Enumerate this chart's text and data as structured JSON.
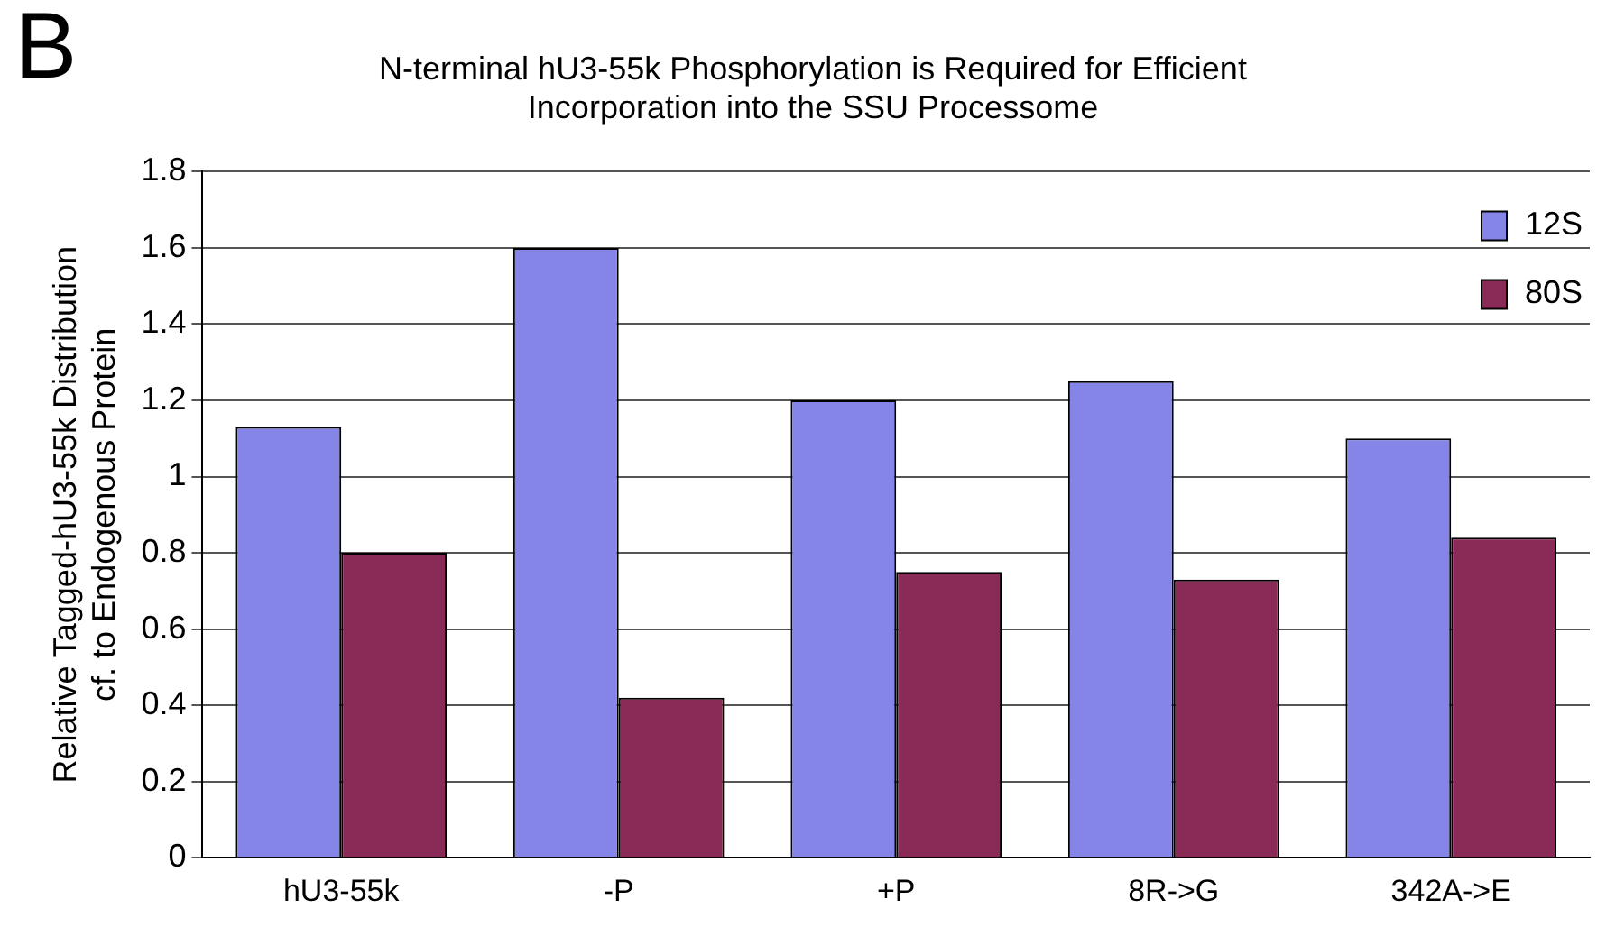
{
  "chart_data": {
    "type": "bar",
    "title": "N-terminal hU3-55k Phosphorylation is Required for Efficient\nIncorporation into the SSU Processome",
    "ylabel": "Relative Tagged-hU3-55k Distribution\ncf. to Endogenous Protein",
    "annotations": [
      "B"
    ],
    "categories": [
      "hU3-55k",
      "-P",
      "+P",
      "8R->G",
      "342A->E"
    ],
    "series": [
      {
        "name": "12S",
        "color": "#8585e8",
        "values": [
          1.13,
          1.6,
          1.2,
          1.25,
          1.1
        ]
      },
      {
        "name": "80S",
        "color": "#8a2a57",
        "values": [
          0.8,
          0.42,
          0.75,
          0.73,
          0.84
        ]
      }
    ],
    "ylim": [
      0,
      1.8
    ],
    "yticks": [
      0,
      0.2,
      0.4,
      0.6,
      0.8,
      1,
      1.2,
      1.4,
      1.6,
      1.8
    ],
    "grid": "y",
    "legend": "top right"
  }
}
